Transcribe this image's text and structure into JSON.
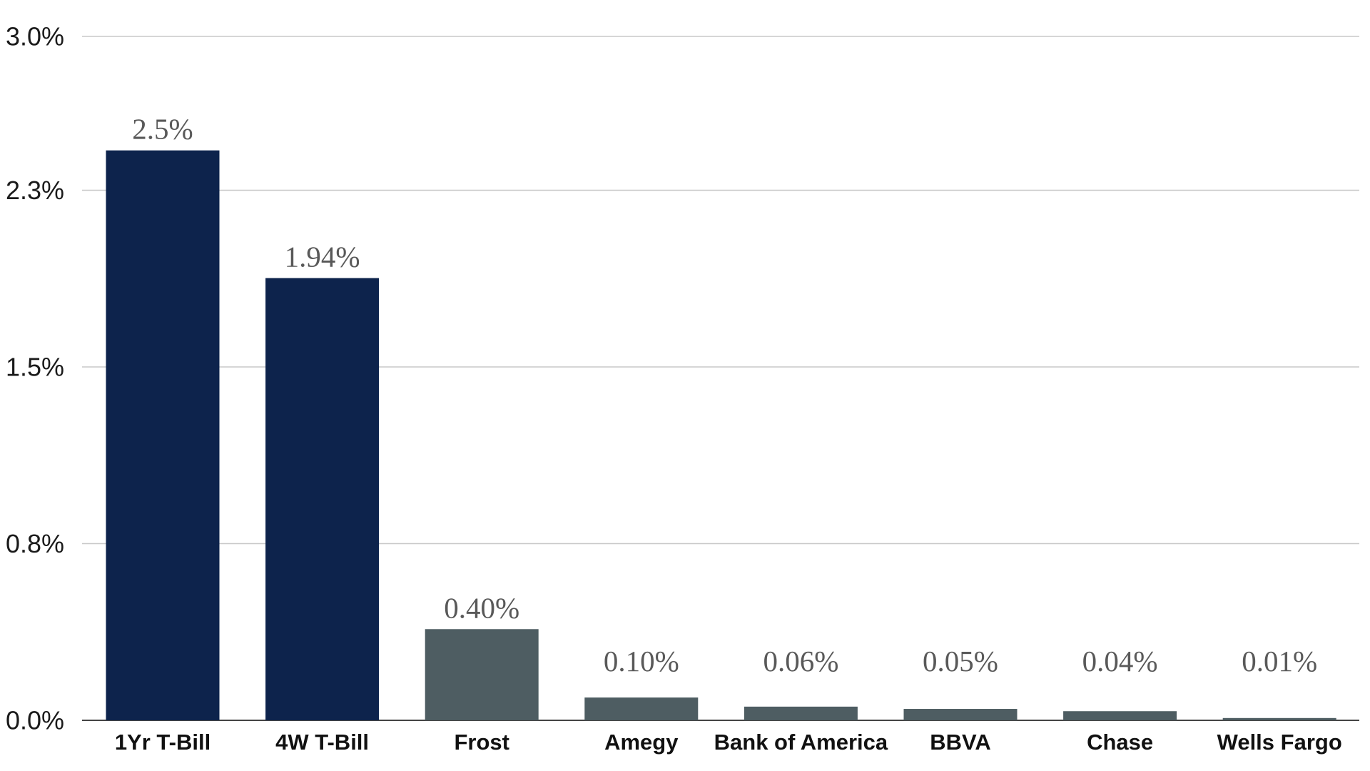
{
  "chart_data": {
    "type": "bar",
    "title": "",
    "xlabel": "",
    "ylabel": "",
    "ylim": [
      0,
      3.0
    ],
    "grid": true,
    "legend": "none",
    "yticks": [
      0,
      0.775,
      1.55,
      2.325,
      3.0
    ],
    "ytick_labels": [
      "0.0%",
      "0.8%",
      "1.5%",
      "2.3%",
      "3.0%"
    ],
    "categories": [
      "1Yr T-Bill",
      "4W T-Bill",
      "Frost",
      "Amegy",
      "Bank of America",
      "BBVA",
      "Chase",
      "Wells Fargo"
    ],
    "values": [
      2.5,
      1.94,
      0.4,
      0.1,
      0.06,
      0.05,
      0.04,
      0.01
    ],
    "data_labels": [
      "2.5%",
      "1.94%",
      "0.40%",
      "0.10%",
      "0.06%",
      "0.05%",
      "0.04%",
      "0.01%"
    ],
    "bar_colors": [
      "#0d234c",
      "#0d234c",
      "#4e5d62",
      "#4e5d62",
      "#4e5d62",
      "#4e5d62",
      "#4e5d62",
      "#4e5d62"
    ],
    "gridline_color": "#c8c8c8"
  }
}
